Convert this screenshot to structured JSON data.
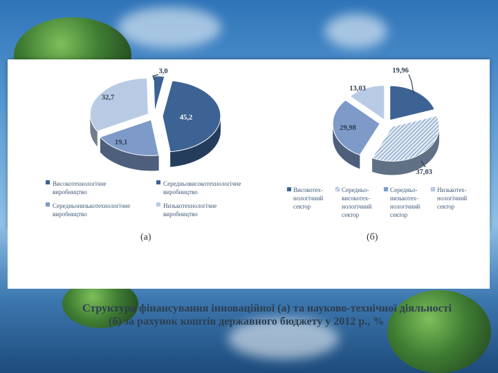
{
  "colors": {
    "dark_blue": "#3c6394",
    "mid_blue": "#7e9ac8",
    "light_blue": "#b9cbe4",
    "hatched_blue": "#9bb6d6"
  },
  "chart_data": [
    {
      "type": "pie",
      "title": "",
      "slices": [
        {
          "label": "Високотехнологічне виробництво",
          "value": 3.0,
          "value_label": "3,0"
        },
        {
          "label": "Середньовисокотехнологічне виробництво",
          "value": 45.2,
          "value_label": "45,2"
        },
        {
          "label": "Середньонизькотехнологічне виробництво",
          "value": 19.1,
          "value_label": "19,1"
        },
        {
          "label": "Низькотехнологічне виробництво",
          "value": 32.7,
          "value_label": "32,7"
        }
      ],
      "legend": [
        "Високотехнологічне виробництво",
        "Середньовисокотехнологічне виробництво",
        "Середньонизькотехнологічне виробництво",
        "Низькотехнологічне виробництво"
      ],
      "legend_placement": "bottom",
      "panel_label": "(а)"
    },
    {
      "type": "pie",
      "title": "",
      "slices": [
        {
          "label": "Високотех-нологічний сектор",
          "value": 19.96,
          "value_label": "19,96"
        },
        {
          "label": "Середньо-високотех-нологічний сектор",
          "value": 37.03,
          "value_label": "37,03"
        },
        {
          "label": "Середньо-низькотех-нологічний сектор",
          "value": 29.98,
          "value_label": "29,98"
        },
        {
          "label": "Низькотех-нологічний сектор",
          "value": 13.03,
          "value_label": "13,03"
        }
      ],
      "legend": [
        "Високотех-нологічний сектор",
        "Середньо-високотех-нологічний сектор",
        "Середньо-низькотех-нологічний сектор",
        "Низькотех-нологічний сектор"
      ],
      "legend_placement": "bottom",
      "panel_label": "(б)"
    }
  ],
  "caption": {
    "line1": "Структура фінансування інноваційної (а) та науково-технічної діяльності",
    "line2": "(б) за рахунок коштів державного бюджету у 2012 р., %"
  }
}
